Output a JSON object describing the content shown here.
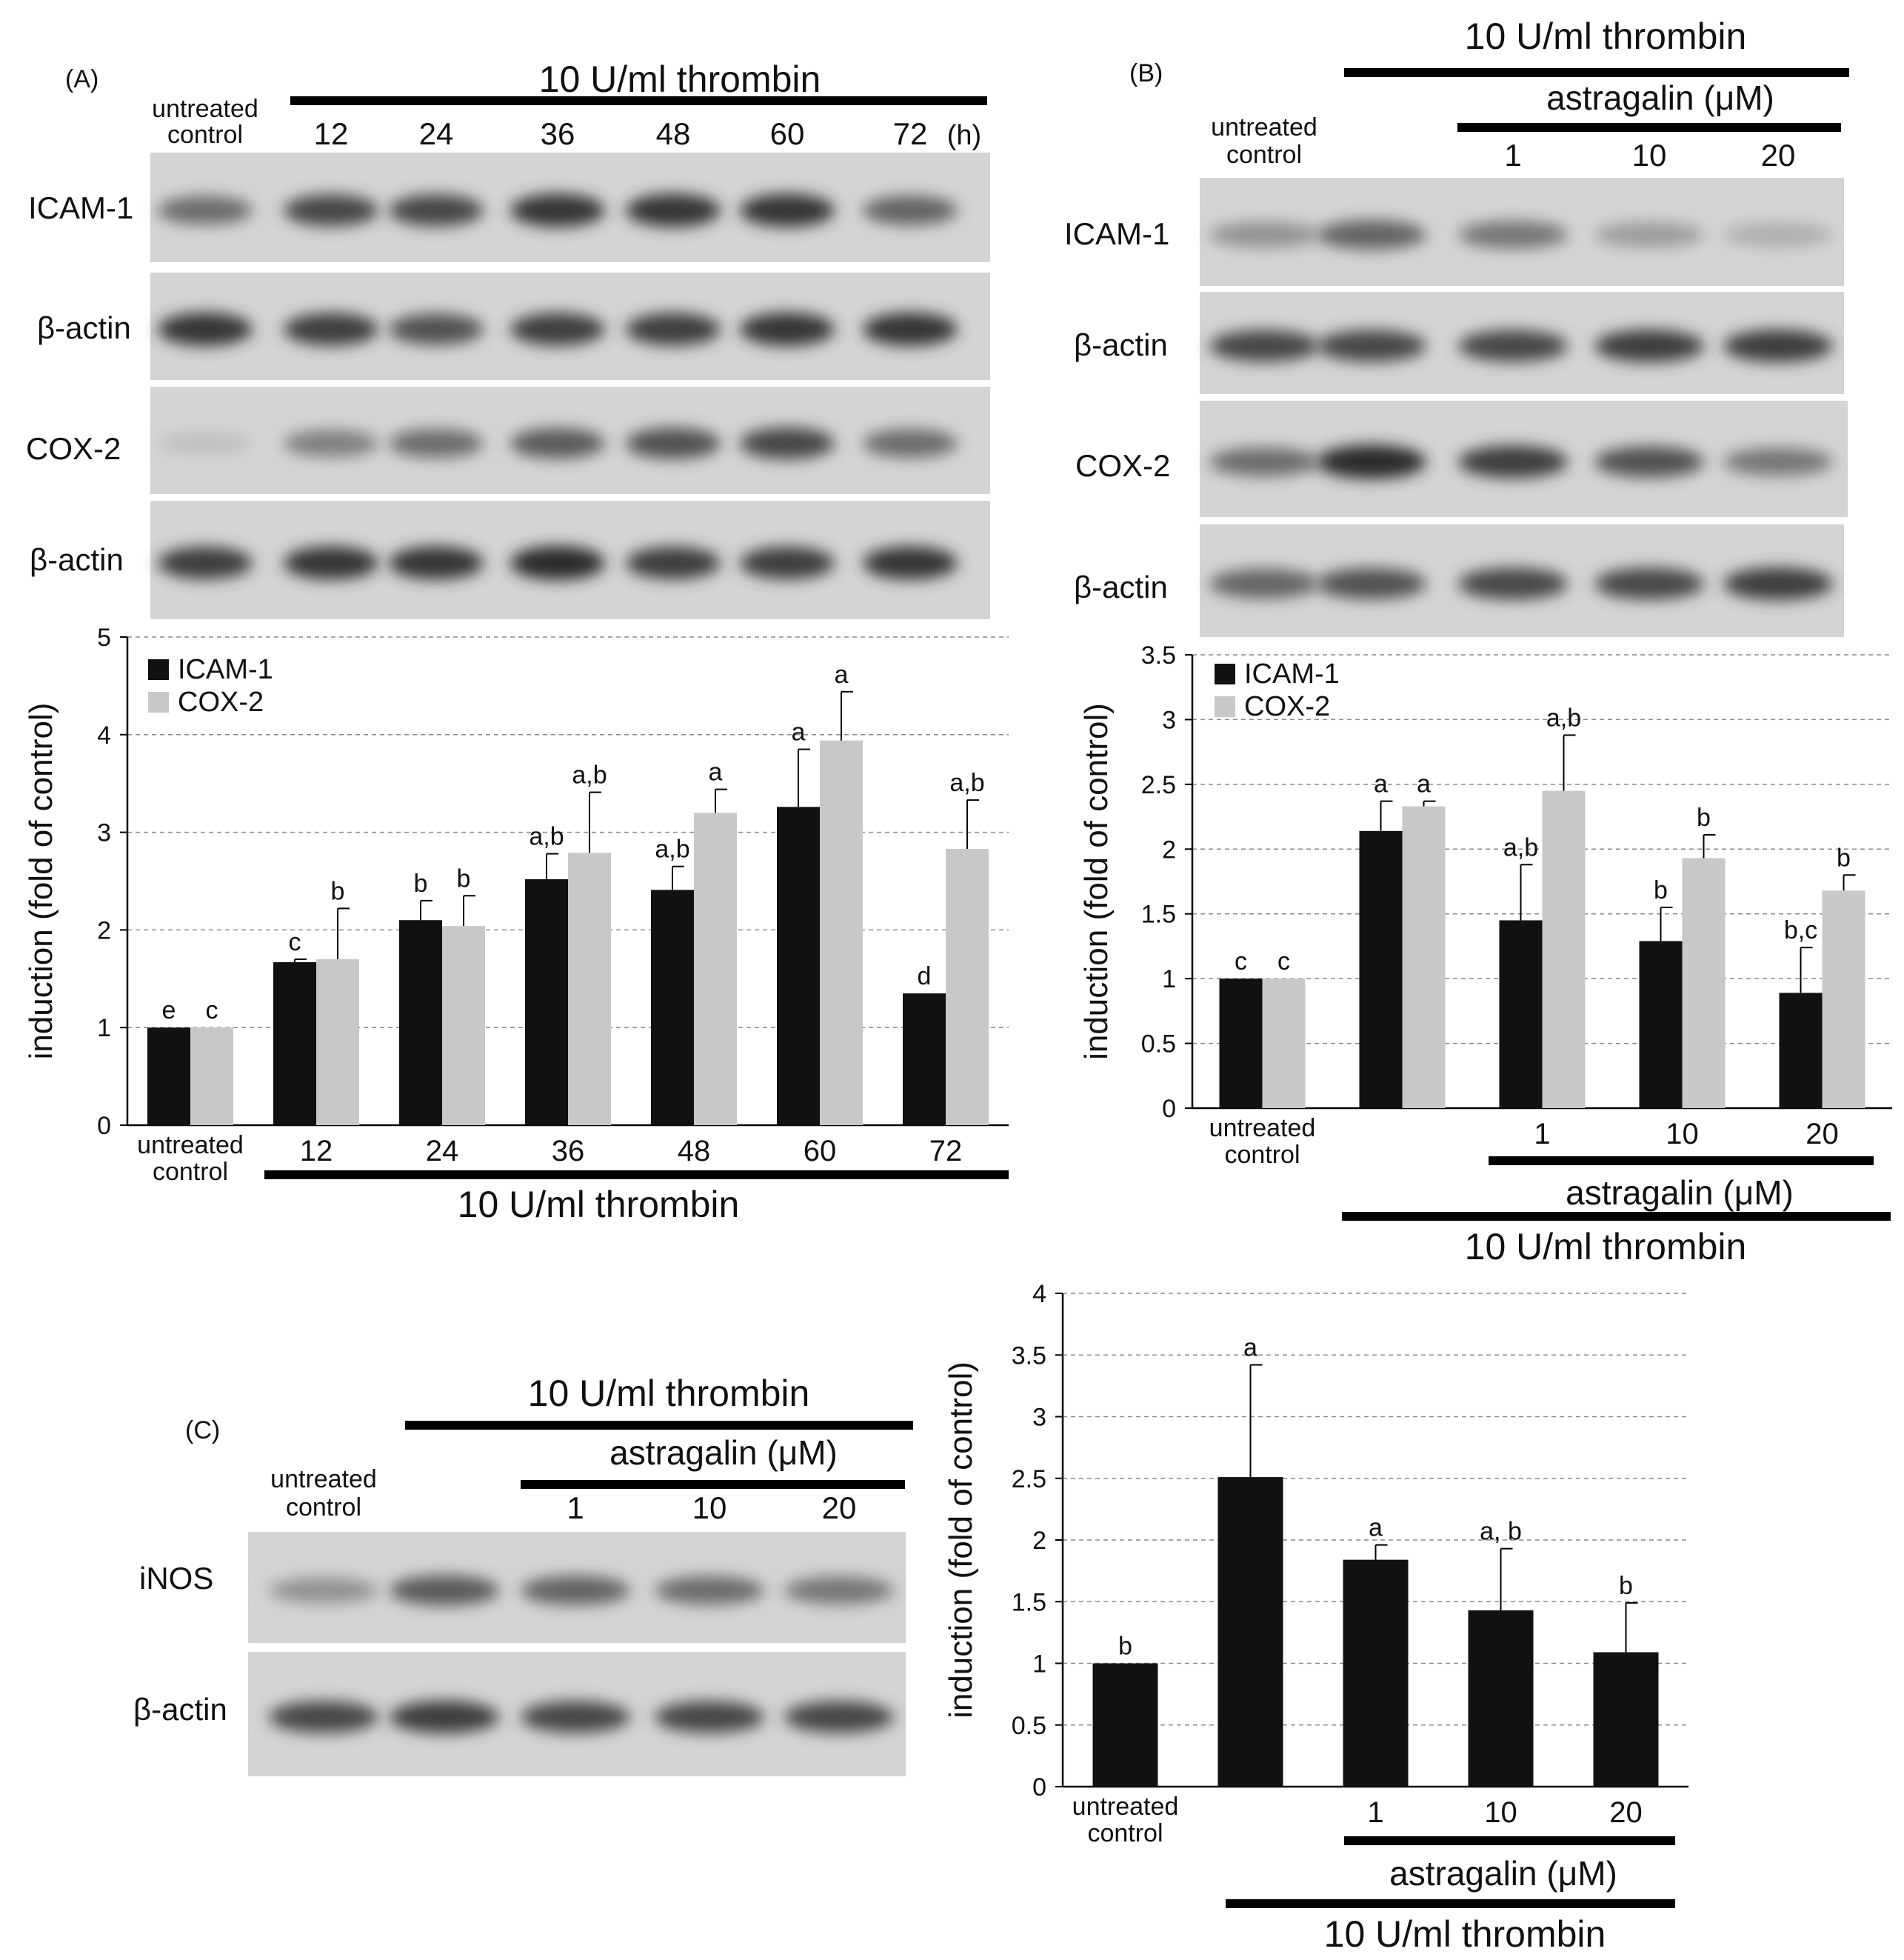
{
  "panels": {
    "A": {
      "label": "(A)",
      "treatment_title": "10 U/ml thrombin",
      "control_label": [
        "untreated",
        "control"
      ],
      "timepoints": [
        "12",
        "24",
        "36",
        "48",
        "60",
        "72"
      ],
      "time_unit": "(h)",
      "blot_rows": [
        "ICAM-1",
        "β-actin",
        "COX-2",
        "β-actin"
      ],
      "band_intensity": {
        "ICAM-1": [
          0.55,
          0.75,
          0.75,
          0.85,
          0.85,
          0.85,
          0.6
        ],
        "β-actin_1": [
          0.85,
          0.8,
          0.7,
          0.8,
          0.8,
          0.85,
          0.85
        ],
        "COX-2": [
          0.1,
          0.45,
          0.55,
          0.65,
          0.7,
          0.75,
          0.55
        ],
        "β-actin_2": [
          0.8,
          0.85,
          0.85,
          0.9,
          0.8,
          0.8,
          0.85
        ]
      }
    },
    "B": {
      "label": "(B)",
      "treatment_title": "10 U/ml thrombin",
      "drug_title": "astragalin (μM)",
      "control_label": [
        "untreated",
        "control"
      ],
      "doses": [
        "1",
        "10",
        "20"
      ],
      "blot_rows": [
        "ICAM-1",
        "β-actin",
        "COX-2",
        "β-actin"
      ],
      "band_intensity": {
        "ICAM-1": [
          0.35,
          0.6,
          0.5,
          0.3,
          0.2
        ],
        "β-actin_1": [
          0.75,
          0.75,
          0.75,
          0.8,
          0.8
        ],
        "COX-2": [
          0.55,
          0.9,
          0.8,
          0.7,
          0.5
        ],
        "β-actin_2": [
          0.6,
          0.7,
          0.75,
          0.75,
          0.8
        ]
      }
    },
    "C": {
      "label": "(C)",
      "treatment_title": "10 U/ml thrombin",
      "drug_title": "astragalin (μM)",
      "control_label": [
        "untreated",
        "control"
      ],
      "doses": [
        "1",
        "10",
        "20"
      ],
      "blot_rows": [
        "iNOS",
        "β-actin"
      ],
      "band_intensity": {
        "iNOS": [
          0.35,
          0.65,
          0.6,
          0.55,
          0.5
        ],
        "β-actin": [
          0.75,
          0.8,
          0.75,
          0.75,
          0.75
        ]
      }
    }
  },
  "chart_data": [
    {
      "panel": "A",
      "type": "bar",
      "ylabel": "induction (fold of control)",
      "ylim": [
        0,
        5
      ],
      "yticks": [
        "0",
        "1",
        "2",
        "3",
        "4",
        "5"
      ],
      "categories": [
        "untreated control",
        "12",
        "24",
        "36",
        "48",
        "60",
        "72"
      ],
      "category_labels": [
        "untreated|control",
        "12",
        "24",
        "36",
        "48",
        "60",
        "72"
      ],
      "group_caption": "10 U/ml thrombin",
      "legend_position": "top-left",
      "grid": true,
      "series": [
        {
          "name": "ICAM-1",
          "color": "#111111",
          "values": [
            1.0,
            1.67,
            2.1,
            2.52,
            2.41,
            3.26,
            1.35
          ],
          "errors": [
            0.0,
            0.03,
            0.2,
            0.26,
            0.24,
            0.59,
            0.0
          ],
          "letters": [
            "e",
            "c",
            "b",
            "a,b",
            "a,b",
            "a",
            "d"
          ]
        },
        {
          "name": "COX-2",
          "color": "#c8c8c8",
          "values": [
            1.0,
            1.7,
            2.04,
            2.79,
            3.2,
            3.94,
            2.83
          ],
          "errors": [
            0.0,
            0.52,
            0.31,
            0.62,
            0.24,
            0.5,
            0.5
          ],
          "letters": [
            "c",
            "b",
            "b",
            "a,b",
            "a",
            "a",
            "a,b"
          ]
        }
      ]
    },
    {
      "panel": "B",
      "type": "bar",
      "ylabel": "induction (fold of control)",
      "ylim": [
        0,
        3.5
      ],
      "yticks": [
        "0",
        "0.5",
        "1",
        "1.5",
        "2",
        "2.5",
        "3",
        "3.5"
      ],
      "categories": [
        "untreated control",
        "thrombin",
        "1",
        "10",
        "20"
      ],
      "category_labels": [
        "untreated|control",
        "",
        "1",
        "10",
        "20"
      ],
      "drug_caption": "astragalin (μM)",
      "group_caption": "10 U/ml thrombin",
      "legend_position": "top-left",
      "grid": true,
      "series": [
        {
          "name": "ICAM-1",
          "color": "#111111",
          "values": [
            1.0,
            2.14,
            1.45,
            1.29,
            0.89
          ],
          "errors": [
            0.0,
            0.23,
            0.43,
            0.26,
            0.35
          ],
          "letters": [
            "c",
            "a",
            "a,b",
            "b",
            "b,c"
          ]
        },
        {
          "name": "COX-2",
          "color": "#c8c8c8",
          "values": [
            1.0,
            2.33,
            2.45,
            1.93,
            1.68
          ],
          "errors": [
            0.0,
            0.04,
            0.43,
            0.18,
            0.12
          ],
          "letters": [
            "c",
            "a",
            "a,b",
            "b",
            "b"
          ]
        }
      ]
    },
    {
      "panel": "C",
      "type": "bar",
      "ylabel": "induction (fold of control)",
      "ylim": [
        0,
        4
      ],
      "yticks": [
        "0",
        "0.5",
        "1",
        "1.5",
        "2",
        "2.5",
        "3",
        "3.5",
        "4"
      ],
      "categories": [
        "untreated control",
        "thrombin",
        "1",
        "10",
        "20"
      ],
      "category_labels": [
        "untreated|control",
        "",
        "1",
        "10",
        "20"
      ],
      "drug_caption": "astragalin (μM)",
      "group_caption": "10 U/ml thrombin",
      "grid": true,
      "series": [
        {
          "name": "iNOS",
          "color": "#111111",
          "values": [
            1.0,
            2.51,
            1.84,
            1.43,
            1.09
          ],
          "errors": [
            0.0,
            0.91,
            0.12,
            0.5,
            0.4
          ],
          "letters": [
            "b",
            "a",
            "a",
            "a, b",
            "b"
          ]
        }
      ]
    }
  ]
}
